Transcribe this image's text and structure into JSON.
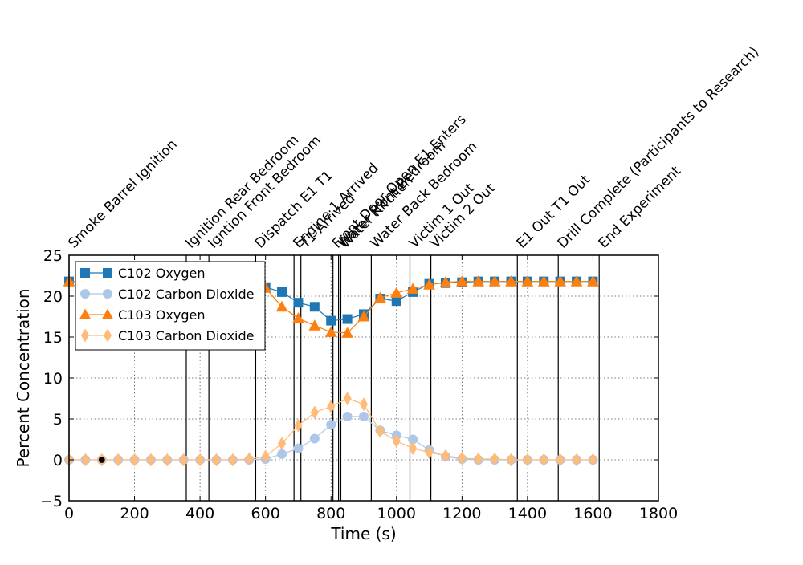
{
  "chart_data": {
    "type": "line",
    "title": "",
    "xlabel": "Time (s)",
    "ylabel": "Percent Concentration",
    "xlim": [
      0,
      1800
    ],
    "ylim": [
      -5,
      25
    ],
    "x_ticks": [
      0,
      200,
      400,
      600,
      800,
      1000,
      1200,
      1400,
      1600,
      1800
    ],
    "y_ticks": [
      -5,
      0,
      5,
      10,
      15,
      20,
      25
    ],
    "grid": true,
    "legend_position": "upper-left",
    "events": [
      {
        "time": 0,
        "label": "Smoke Barrel Ignition"
      },
      {
        "time": 358,
        "label": "Ignition Rear Bedroom"
      },
      {
        "time": 427,
        "label": "Igntion Front Bedroom"
      },
      {
        "time": 570,
        "label": "Dispatch E1 T1"
      },
      {
        "time": 687,
        "label": "Engine 1 Arrived"
      },
      {
        "time": 708,
        "label": "T1 Arrived"
      },
      {
        "time": 806,
        "label": "Front Door Open E1 Enters"
      },
      {
        "time": 823,
        "label": "Water Front Bedroom"
      },
      {
        "time": 830,
        "label": "Water Kitchen"
      },
      {
        "time": 923,
        "label": "Water Back Bedroom"
      },
      {
        "time": 1041,
        "label": "Victim 1 Out"
      },
      {
        "time": 1105,
        "label": "Victim 2 Out"
      },
      {
        "time": 1369,
        "label": "E1 Out T1 Out"
      },
      {
        "time": 1494,
        "label": "Drill Complete (Participants to Research)"
      },
      {
        "time": 1619,
        "label": "End Experiment"
      }
    ],
    "series": [
      {
        "name": "C102 Oxygen",
        "color": "#1f77b4",
        "marker": "square",
        "x": [
          0,
          50,
          100,
          150,
          200,
          250,
          300,
          350,
          400,
          450,
          500,
          550,
          600,
          650,
          700,
          750,
          800,
          850,
          900,
          950,
          1000,
          1050,
          1100,
          1150,
          1200,
          1250,
          1300,
          1350,
          1400,
          1450,
          1500,
          1550,
          1600
        ],
        "y": [
          21.8,
          21.8,
          21.8,
          21.8,
          21.8,
          21.8,
          21.8,
          21.8,
          21.8,
          21.8,
          21.8,
          21.7,
          21.1,
          20.5,
          19.2,
          18.7,
          17.0,
          17.2,
          17.8,
          19.7,
          19.4,
          20.5,
          21.5,
          21.6,
          21.7,
          21.8,
          21.8,
          21.8,
          21.8,
          21.8,
          21.8,
          21.8,
          21.8
        ]
      },
      {
        "name": "C102 Carbon Dioxide",
        "color": "#aec7e8",
        "marker": "circle",
        "x": [
          0,
          50,
          100,
          150,
          200,
          250,
          300,
          350,
          400,
          450,
          500,
          550,
          600,
          650,
          700,
          750,
          800,
          850,
          900,
          950,
          1000,
          1050,
          1100,
          1150,
          1200,
          1250,
          1300,
          1350,
          1400,
          1450,
          1500,
          1550,
          1600
        ],
        "y": [
          0.0,
          0.0,
          0.0,
          0.0,
          0.0,
          0.0,
          0.0,
          0.0,
          0.0,
          0.0,
          0.0,
          0.0,
          0.1,
          0.7,
          1.4,
          2.6,
          4.3,
          5.3,
          5.3,
          3.6,
          3.0,
          2.5,
          1.2,
          0.4,
          0.1,
          0.0,
          0.0,
          0.0,
          0.0,
          0.0,
          0.0,
          0.0,
          0.0
        ]
      },
      {
        "name": "C103 Oxygen",
        "color": "#ff7f0e",
        "marker": "triangle",
        "x": [
          0,
          50,
          100,
          150,
          200,
          250,
          300,
          350,
          400,
          450,
          500,
          550,
          600,
          650,
          700,
          750,
          800,
          850,
          900,
          950,
          1000,
          1050,
          1100,
          1150,
          1200,
          1250,
          1300,
          1350,
          1400,
          1450,
          1500,
          1550,
          1600
        ],
        "y": [
          21.8,
          21.8,
          21.8,
          21.8,
          21.8,
          21.8,
          21.8,
          21.8,
          21.8,
          21.8,
          21.8,
          21.7,
          21.0,
          18.7,
          17.3,
          16.4,
          15.6,
          15.5,
          17.5,
          19.8,
          20.4,
          20.9,
          21.4,
          21.7,
          21.8,
          21.8,
          21.8,
          21.8,
          21.8,
          21.8,
          21.8,
          21.8,
          21.8
        ]
      },
      {
        "name": "C103 Carbon Dioxide",
        "color": "#ffbb78",
        "marker": "diamond",
        "x": [
          0,
          50,
          100,
          150,
          200,
          250,
          300,
          350,
          400,
          450,
          500,
          550,
          600,
          650,
          700,
          750,
          800,
          850,
          900,
          950,
          1000,
          1050,
          1100,
          1150,
          1200,
          1250,
          1300,
          1350,
          1400,
          1450,
          1500,
          1550,
          1600
        ],
        "y": [
          0.0,
          0.0,
          0.0,
          0.0,
          0.0,
          0.0,
          0.0,
          0.0,
          0.0,
          0.0,
          0.0,
          0.1,
          0.4,
          2.0,
          4.2,
          5.8,
          6.5,
          7.5,
          6.8,
          3.5,
          2.3,
          1.4,
          0.9,
          0.5,
          0.2,
          0.1,
          0.1,
          0.0,
          0.0,
          0.0,
          0.0,
          0.0,
          0.0
        ]
      }
    ],
    "annotation_points": [
      {
        "x": 100,
        "y": 0.0,
        "color": "#000000"
      }
    ]
  }
}
